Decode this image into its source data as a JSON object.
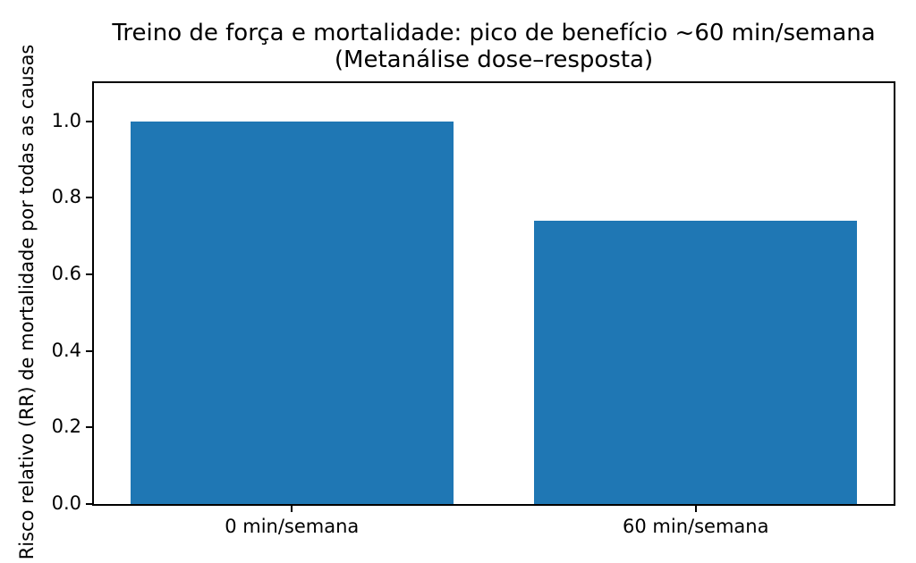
{
  "figure": {
    "background": "#ffffff"
  },
  "chart_data": {
    "type": "bar",
    "title": "Treino de força e mortalidade: pico de benefício ~60 min/semana",
    "subtitle": "(Metanálise dose–resposta)",
    "categories": [
      "0 min/semana",
      "60 min/semana"
    ],
    "values": [
      1.0,
      0.74
    ],
    "xlabel": "",
    "ylabel": "Risco relativo (RR) de mortalidade por todas as causas",
    "ylim": [
      0,
      1.1
    ],
    "xlim": [
      -0.49,
      1.49
    ],
    "bar_width": 0.8,
    "yticks": [
      0.0,
      0.2,
      0.4,
      0.6,
      0.8,
      1.0
    ],
    "ytick_labels": [
      "0.0",
      "0.2",
      "0.4",
      "0.6",
      "0.8",
      "1.0"
    ],
    "bar_color": "#1f77b4",
    "axis_color": "#000000",
    "text_color": "#000000",
    "grid": false,
    "legend": false
  }
}
